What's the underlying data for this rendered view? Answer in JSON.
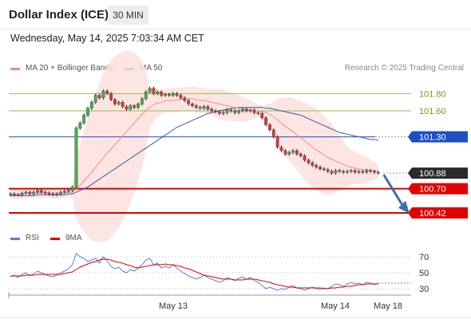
{
  "header": {
    "title": "Dollar Index (ICE)",
    "interval": "30 MIN",
    "datetime": "Wednesday, May 14, 2025 7:03:34 AM CET"
  },
  "legend": {
    "ma20_label": "MA 20 + Bollinger Bands",
    "ma50_label": "MA 50",
    "credit": "Research © 2025 Trading Central",
    "rsi_label": "RSI",
    "ma9_label": "9MA"
  },
  "colors": {
    "ma20": "#f28b82",
    "ma50": "#3c5ba6",
    "band_fill": "#fde1df",
    "up_candle": "#4caf50",
    "down_candle": "#e53935",
    "resistance": "#8bc34a",
    "pivot": "#1e4fc2",
    "support": "#e00000",
    "last_price_bg": "#2b2b2b",
    "rsi": "#5b7fd6",
    "rsi_ma": "#e00000"
  },
  "chart_data": [
    {
      "type": "candlestick",
      "title": "Dollar Index (ICE)",
      "interval": "30 MIN",
      "x_labels": [
        "May 13",
        "May 14",
        "May 18"
      ],
      "ylim": [
        100.3,
        101.96
      ],
      "candles_summary": {
        "count": 96,
        "last_close": 100.88,
        "note": "close values per candle"
      },
      "close": [
        100.64,
        100.63,
        100.63,
        100.65,
        100.66,
        100.64,
        100.66,
        100.68,
        100.66,
        100.65,
        100.64,
        100.63,
        100.64,
        100.66,
        100.67,
        100.68,
        100.72,
        101.4,
        101.46,
        101.55,
        101.63,
        101.7,
        101.78,
        101.75,
        101.83,
        101.8,
        101.73,
        101.68,
        101.7,
        101.65,
        101.62,
        101.66,
        101.64,
        101.68,
        101.74,
        101.82,
        101.86,
        101.8,
        101.82,
        101.78,
        101.79,
        101.78,
        101.8,
        101.78,
        101.75,
        101.72,
        101.68,
        101.66,
        101.64,
        101.63,
        101.65,
        101.62,
        101.6,
        101.59,
        101.57,
        101.58,
        101.61,
        101.6,
        101.58,
        101.6,
        101.62,
        101.6,
        101.61,
        101.58,
        101.57,
        101.52,
        101.44,
        101.38,
        101.3,
        101.18,
        101.14,
        101.1,
        101.12,
        101.14,
        101.1,
        101.08,
        101.03,
        101.0,
        100.97,
        100.95,
        100.93,
        100.92,
        100.9,
        100.88,
        100.91,
        100.9,
        100.89,
        100.9,
        100.91,
        100.89,
        100.9,
        100.89,
        100.91,
        100.9,
        100.89,
        100.88
      ],
      "levels": [
        {
          "label": "101.80",
          "value": 101.8,
          "kind": "resistance"
        },
        {
          "label": "101.60",
          "value": 101.6,
          "kind": "resistance"
        },
        {
          "label": "101.30",
          "value": 101.3,
          "kind": "pivot"
        },
        {
          "label": "100.88",
          "value": 100.88,
          "kind": "last"
        },
        {
          "label": "100.70",
          "value": 100.7,
          "kind": "support"
        },
        {
          "label": "100.42",
          "value": 100.42,
          "kind": "support"
        }
      ],
      "series": [
        {
          "name": "MA 20 + Bollinger Bands",
          "values": [
            100.64,
            100.64,
            100.64,
            100.64,
            100.65,
            100.65,
            100.65,
            100.65,
            100.65,
            100.65,
            100.65,
            100.65,
            100.65,
            100.65,
            100.65,
            100.66,
            100.66,
            100.7,
            100.74,
            100.79,
            100.84,
            100.89,
            100.95,
            101.0,
            101.06,
            101.11,
            101.16,
            101.21,
            101.26,
            101.31,
            101.36,
            101.41,
            101.46,
            101.51,
            101.56,
            101.61,
            101.64,
            101.67,
            101.69,
            101.7,
            101.72,
            101.72,
            101.72,
            101.73,
            101.73,
            101.74,
            101.74,
            101.74,
            101.73,
            101.72,
            101.72,
            101.71,
            101.7,
            101.69,
            101.68,
            101.67,
            101.66,
            101.65,
            101.64,
            101.63,
            101.62,
            101.61,
            101.61,
            101.6,
            101.6,
            101.59,
            101.58,
            101.56,
            101.53,
            101.5,
            101.46,
            101.42,
            101.39,
            101.36,
            101.32,
            101.29,
            101.25,
            101.22,
            101.18,
            101.15,
            101.12,
            101.09,
            101.06,
            101.04,
            101.02,
            101.0,
            100.98,
            100.96,
            100.95,
            100.94,
            100.93,
            100.92,
            100.92,
            100.91,
            100.91,
            100.9
          ]
        },
        {
          "name": "MA 50",
          "values": [
            100.62,
            100.62,
            100.62,
            100.62,
            100.62,
            100.62,
            100.62,
            100.63,
            100.63,
            100.63,
            100.63,
            100.63,
            100.63,
            100.63,
            100.63,
            100.64,
            100.64,
            100.66,
            100.68,
            100.7,
            100.72,
            100.75,
            100.78,
            100.81,
            100.84,
            100.87,
            100.9,
            100.93,
            100.96,
            100.99,
            101.02,
            101.05,
            101.08,
            101.11,
            101.14,
            101.17,
            101.2,
            101.23,
            101.26,
            101.29,
            101.32,
            101.35,
            101.38,
            101.41,
            101.43,
            101.45,
            101.47,
            101.49,
            101.51,
            101.53,
            101.55,
            101.57,
            101.58,
            101.59,
            101.6,
            101.61,
            101.62,
            101.63,
            101.63,
            101.64,
            101.64,
            101.64,
            101.64,
            101.64,
            101.64,
            101.64,
            101.63,
            101.63,
            101.62,
            101.61,
            101.6,
            101.59,
            101.58,
            101.57,
            101.56,
            101.55,
            101.53,
            101.51,
            101.49,
            101.47,
            101.45,
            101.43,
            101.41,
            101.39,
            101.37,
            101.35,
            101.34,
            101.33,
            101.32,
            101.31,
            101.3,
            101.29,
            101.28,
            101.27,
            101.27,
            101.26
          ]
        }
      ],
      "forecast_arrow": {
        "from": 100.88,
        "to": 100.45
      }
    },
    {
      "type": "line",
      "title": "RSI",
      "ylim": [
        20,
        80
      ],
      "y_ticks": [
        70,
        50,
        30
      ],
      "series": [
        {
          "name": "RSI",
          "values": [
            45,
            47,
            44,
            48,
            50,
            46,
            49,
            52,
            50,
            48,
            46,
            45,
            47,
            50,
            52,
            55,
            60,
            74,
            70,
            68,
            64,
            66,
            68,
            62,
            70,
            65,
            58,
            55,
            57,
            52,
            50,
            54,
            52,
            56,
            60,
            66,
            68,
            60,
            62,
            56,
            58,
            56,
            60,
            56,
            52,
            49,
            46,
            44,
            42,
            44,
            47,
            44,
            42,
            40,
            38,
            40,
            44,
            42,
            40,
            43,
            45,
            42,
            44,
            40,
            38,
            34,
            30,
            32,
            30,
            28,
            30,
            29,
            32,
            34,
            31,
            30,
            28,
            30,
            32,
            30,
            29,
            31,
            30,
            33,
            36,
            35,
            33,
            36,
            38,
            36,
            37,
            35,
            38,
            37,
            35,
            37
          ]
        },
        {
          "name": "9MA",
          "values": [
            46,
            46,
            46,
            46,
            47,
            47,
            47,
            48,
            48,
            48,
            48,
            48,
            48,
            48,
            49,
            50,
            51,
            54,
            57,
            59,
            61,
            63,
            64,
            66,
            67,
            67,
            66,
            64,
            63,
            62,
            60,
            59,
            57,
            56,
            57,
            58,
            59,
            60,
            60,
            60,
            61,
            60,
            60,
            59,
            58,
            56,
            55,
            53,
            51,
            49,
            47,
            46,
            45,
            44,
            43,
            42,
            42,
            42,
            41,
            41,
            41,
            42,
            42,
            42,
            41,
            40,
            39,
            38,
            36,
            35,
            34,
            33,
            32,
            32,
            31,
            31,
            31,
            31,
            31,
            31,
            31,
            30,
            30,
            31,
            31,
            32,
            32,
            33,
            33,
            34,
            35,
            35,
            36,
            36,
            36,
            36
          ]
        }
      ]
    }
  ]
}
